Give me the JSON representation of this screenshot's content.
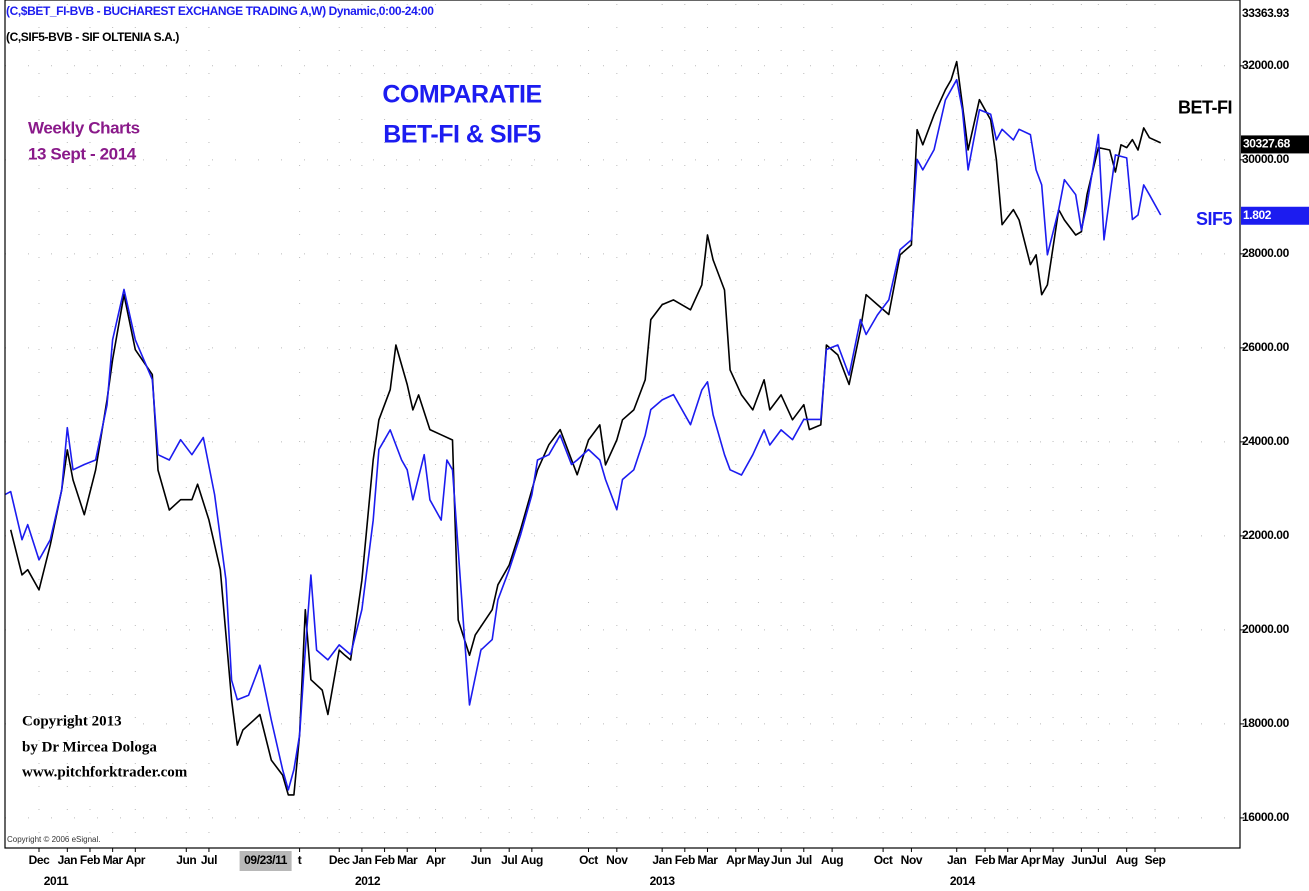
{
  "chart_data": {
    "type": "line",
    "header": [
      "(C,$BET_FI-BVB - BUCHAREST EXCHANGE TRADING A,W) Dynamic,0:00-24:00",
      "(C,SIF5-BVB - SIF OLTENIA S.A.)"
    ],
    "title": [
      "COMPARATIE",
      "BET-FI & SIF5"
    ],
    "subtitle": [
      "Weekly Charts",
      "13 Sept -  2014"
    ],
    "copyright": [
      "Copyright 2013",
      "by Dr Mircea Dologa",
      "www.pitchforktrader.com"
    ],
    "source": "Copyright © 2006 eSignal.",
    "xlim": [
      0,
      218
    ],
    "xticks": [
      {
        "value": 6,
        "label": "Dec"
      },
      {
        "value": 11,
        "label": "Jan"
      },
      {
        "value": 15,
        "label": "Feb"
      },
      {
        "value": 19,
        "label": "Mar"
      },
      {
        "value": 23,
        "label": "Apr"
      },
      {
        "value": 32,
        "label": "Jun"
      },
      {
        "value": 36,
        "label": "Jul"
      },
      {
        "value": 52,
        "label": "t"
      },
      {
        "value": 59,
        "label": "Dec"
      },
      {
        "value": 63,
        "label": "Jan"
      },
      {
        "value": 67,
        "label": "Feb"
      },
      {
        "value": 71,
        "label": "Mar"
      },
      {
        "value": 76,
        "label": "Apr"
      },
      {
        "value": 84,
        "label": "Jun"
      },
      {
        "value": 89,
        "label": "Jul"
      },
      {
        "value": 93,
        "label": "Aug"
      },
      {
        "value": 103,
        "label": "Oct"
      },
      {
        "value": 108,
        "label": "Nov"
      },
      {
        "value": 116,
        "label": "Jan"
      },
      {
        "value": 120,
        "label": "Feb"
      },
      {
        "value": 124,
        "label": "Mar"
      },
      {
        "value": 129,
        "label": "Apr"
      },
      {
        "value": 133,
        "label": "May"
      },
      {
        "value": 137,
        "label": "Jun"
      },
      {
        "value": 141,
        "label": "Jul"
      },
      {
        "value": 146,
        "label": "Aug"
      },
      {
        "value": 155,
        "label": "Oct"
      },
      {
        "value": 160,
        "label": "Nov"
      },
      {
        "value": 168,
        "label": "Jan"
      },
      {
        "value": 173,
        "label": "Feb"
      },
      {
        "value": 177,
        "label": "Mar"
      },
      {
        "value": 181,
        "label": "Apr"
      },
      {
        "value": 185,
        "label": "May"
      },
      {
        "value": 190,
        "label": "Jun"
      },
      {
        "value": 193,
        "label": "Jul"
      },
      {
        "value": 198,
        "label": "Aug"
      },
      {
        "value": 203,
        "label": "Sep"
      }
    ],
    "cursor_label": {
      "value": 46,
      "label": "09/23/11"
    },
    "year_labels": [
      {
        "value": 9,
        "label": "2011"
      },
      {
        "value": 64,
        "label": "2012"
      },
      {
        "value": 116,
        "label": "2013"
      },
      {
        "value": 169,
        "label": "2014"
      }
    ],
    "ylim": [
      15360,
      33400
    ],
    "yticks": [
      {
        "value": 16000,
        "label": "16000.00"
      },
      {
        "value": 18000,
        "label": "18000.00"
      },
      {
        "value": 20000,
        "label": "20000.00"
      },
      {
        "value": 22000,
        "label": "22000.00"
      },
      {
        "value": 24000,
        "label": "24000.00"
      },
      {
        "value": 26000,
        "label": "26000.00"
      },
      {
        "value": 28000,
        "label": "28000.00"
      },
      {
        "value": 30000,
        "label": "30000.00"
      },
      {
        "value": 32000,
        "label": "32000.00"
      }
    ],
    "y2lim": [
      0.9607,
      2.0891
    ],
    "high_label": 33363.93,
    "grid": true,
    "series": [
      {
        "name": "BET-FI",
        "color": "#000000",
        "last_value": 30327.68,
        "x": [
          1,
          3,
          4,
          6,
          8,
          10,
          11,
          12,
          14,
          16,
          18,
          19,
          21,
          23,
          26,
          27,
          29,
          31,
          33,
          34,
          36,
          38,
          40,
          41,
          42,
          44,
          45,
          47,
          49,
          50,
          51,
          52,
          53,
          54,
          56,
          57,
          59,
          60,
          61,
          63,
          65,
          66,
          68,
          69,
          71,
          72,
          73,
          75,
          77,
          79,
          80,
          82,
          83,
          86,
          87,
          89,
          91,
          93,
          94,
          96,
          98,
          100,
          101,
          103,
          105,
          106,
          108,
          109,
          111,
          113,
          114,
          116,
          118,
          121,
          123,
          124,
          125,
          127,
          128,
          130,
          132,
          134,
          135,
          137,
          139,
          141,
          142,
          144,
          145,
          147,
          149,
          151,
          152,
          154,
          156,
          158,
          160,
          161,
          162,
          164,
          166,
          167,
          168,
          169,
          170,
          172,
          174,
          175,
          176,
          178,
          179,
          181,
          182,
          183,
          184,
          186,
          187,
          189,
          190,
          191,
          193,
          195,
          196,
          197,
          198,
          199,
          200,
          201,
          202,
          204
        ],
        "values": [
          22130,
          21170,
          21280,
          20850,
          21810,
          22980,
          23830,
          23190,
          22450,
          23400,
          24890,
          25750,
          27130,
          25960,
          25430,
          23400,
          22550,
          22770,
          22770,
          23100,
          22340,
          21280,
          18510,
          17550,
          17870,
          18090,
          18200,
          17230,
          16910,
          16490,
          16490,
          17770,
          20430,
          18940,
          18720,
          18200,
          19570,
          19460,
          19360,
          21060,
          23620,
          24470,
          25110,
          26060,
          25220,
          24680,
          25000,
          24260,
          24150,
          24040,
          20210,
          19460,
          19890,
          20430,
          20960,
          21380,
          22130,
          22980,
          23400,
          23940,
          24260,
          23620,
          23300,
          24040,
          24360,
          23510,
          24040,
          24470,
          24680,
          25320,
          26600,
          26920,
          27020,
          26810,
          27340,
          28400,
          27870,
          27230,
          25530,
          25000,
          24680,
          25320,
          24680,
          25000,
          24470,
          24790,
          24260,
          24360,
          26060,
          25850,
          25220,
          26380,
          27130,
          26920,
          26710,
          27980,
          28190,
          30640,
          30320,
          30960,
          31490,
          31700,
          32090,
          31170,
          30210,
          31280,
          30850,
          30000,
          28620,
          28940,
          28720,
          27770,
          27980,
          27130,
          27340,
          28940,
          28720,
          28400,
          28470,
          29260,
          30260,
          30210,
          29740,
          30320,
          30260,
          30430,
          30210,
          30680,
          30470,
          30360
        ]
      },
      {
        "name": "SIF5",
        "color": "#1c1cf0",
        "axis": "y2",
        "last_value": 1.802,
        "x": [
          0,
          1,
          3,
          4,
          6,
          8,
          10,
          11,
          12,
          14,
          16,
          18,
          19,
          21,
          23,
          26,
          27,
          29,
          31,
          33,
          35,
          37,
          39,
          40,
          41,
          43,
          45,
          47,
          49,
          50,
          51,
          52,
          53,
          54,
          55,
          57,
          59,
          61,
          63,
          65,
          66,
          68,
          70,
          71,
          72,
          74,
          75,
          77,
          78,
          79,
          81,
          82,
          84,
          86,
          87,
          89,
          91,
          93,
          94,
          96,
          98,
          100,
          101,
          103,
          105,
          106,
          108,
          109,
          111,
          113,
          114,
          116,
          118,
          121,
          123,
          124,
          125,
          127,
          128,
          130,
          132,
          134,
          135,
          137,
          139,
          141,
          142,
          144,
          145,
          147,
          149,
          151,
          152,
          154,
          156,
          158,
          160,
          161,
          162,
          164,
          166,
          168,
          169,
          170,
          172,
          174,
          175,
          176,
          178,
          179,
          181,
          182,
          183,
          184,
          186,
          187,
          189,
          190,
          191,
          193,
          194,
          196,
          198,
          199,
          200,
          201,
          202,
          204
        ],
        "values": [
          1.431,
          1.435,
          1.371,
          1.391,
          1.344,
          1.371,
          1.437,
          1.52,
          1.464,
          1.471,
          1.477,
          1.55,
          1.637,
          1.704,
          1.637,
          1.584,
          1.484,
          1.477,
          1.504,
          1.484,
          1.507,
          1.431,
          1.318,
          1.184,
          1.158,
          1.164,
          1.204,
          1.131,
          1.065,
          1.038,
          1.065,
          1.111,
          1.224,
          1.324,
          1.224,
          1.211,
          1.231,
          1.218,
          1.278,
          1.397,
          1.491,
          1.517,
          1.477,
          1.464,
          1.424,
          1.484,
          1.424,
          1.397,
          1.477,
          1.464,
          1.251,
          1.151,
          1.224,
          1.238,
          1.291,
          1.331,
          1.377,
          1.431,
          1.477,
          1.484,
          1.51,
          1.471,
          1.477,
          1.491,
          1.477,
          1.451,
          1.411,
          1.451,
          1.464,
          1.51,
          1.544,
          1.557,
          1.564,
          1.524,
          1.57,
          1.581,
          1.537,
          1.484,
          1.464,
          1.457,
          1.484,
          1.517,
          1.497,
          1.517,
          1.504,
          1.531,
          1.531,
          1.531,
          1.624,
          1.63,
          1.59,
          1.664,
          1.644,
          1.67,
          1.69,
          1.757,
          1.77,
          1.877,
          1.863,
          1.89,
          1.956,
          1.983,
          1.943,
          1.863,
          1.943,
          1.937,
          1.903,
          1.917,
          1.903,
          1.917,
          1.91,
          1.863,
          1.843,
          1.75,
          1.81,
          1.85,
          1.83,
          1.783,
          1.817,
          1.91,
          1.77,
          1.883,
          1.879,
          1.797,
          1.803,
          1.843,
          1.83,
          1.803
        ]
      }
    ]
  }
}
